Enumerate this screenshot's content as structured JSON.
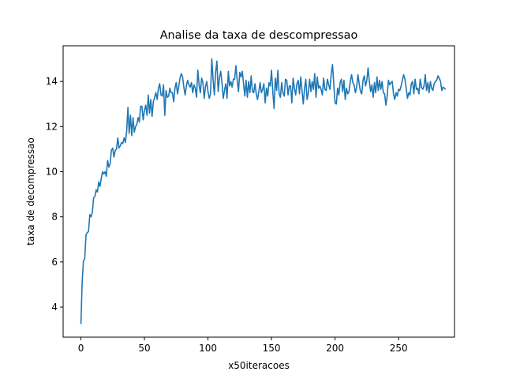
{
  "chart_data": {
    "type": "line",
    "title": "Analise da taxa de descompressao",
    "xlabel": "x50iteracoes",
    "ylabel": "taxa de decompressao",
    "xlim": [
      -14,
      294
    ],
    "ylim": [
      2.67,
      15.58
    ],
    "xticks": [
      0,
      50,
      100,
      150,
      200,
      250
    ],
    "yticks": [
      4,
      6,
      8,
      10,
      12,
      14
    ],
    "grid": false,
    "legend": "none",
    "series": [
      {
        "color": "#1f77b4",
        "values": [
          3.25,
          5.15,
          6.05,
          6.15,
          7.2,
          7.3,
          7.35,
          8.1,
          8.0,
          8.2,
          8.85,
          8.9,
          9.2,
          9.1,
          9.55,
          9.35,
          9.7,
          10.0,
          9.9,
          10.0,
          9.8,
          10.5,
          10.2,
          10.35,
          10.95,
          11.05,
          10.65,
          10.95,
          11.0,
          11.5,
          11.05,
          11.15,
          11.3,
          11.25,
          11.5,
          11.3,
          11.8,
          12.85,
          11.7,
          12.5,
          11.6,
          12.4,
          11.75,
          12.0,
          12.1,
          12.4,
          12.2,
          12.9,
          12.9,
          12.3,
          12.7,
          12.95,
          12.5,
          13.4,
          12.6,
          13.2,
          12.45,
          13.1,
          13.3,
          13.5,
          13.2,
          13.7,
          13.9,
          13.4,
          13.35,
          13.85,
          12.5,
          13.6,
          13.3,
          13.35,
          13.7,
          13.5,
          13.5,
          13.1,
          13.7,
          13.95,
          13.45,
          13.8,
          14.15,
          14.35,
          14.2,
          13.75,
          13.4,
          13.8,
          14.05,
          13.85,
          13.75,
          13.95,
          13.5,
          13.85,
          13.7,
          13.3,
          14.5,
          13.85,
          13.5,
          14.15,
          13.95,
          13.25,
          13.75,
          14.0,
          13.55,
          13.25,
          13.45,
          15.0,
          14.1,
          13.4,
          14.4,
          14.9,
          13.55,
          14.15,
          14.45,
          13.95,
          13.25,
          13.6,
          13.9,
          13.25,
          14.45,
          13.8,
          14.0,
          13.75,
          14.1,
          14.1,
          14.7,
          14.05,
          13.55,
          14.4,
          14.2,
          14.45,
          13.9,
          13.35,
          14.05,
          13.3,
          14.0,
          13.5,
          14.25,
          13.55,
          13.5,
          13.9,
          13.45,
          13.2,
          13.55,
          13.95,
          13.5,
          13.65,
          13.9,
          13.05,
          13.7,
          13.35,
          13.95,
          13.8,
          14.5,
          13.55,
          12.8,
          14.15,
          13.6,
          14.5,
          13.45,
          13.3,
          13.95,
          13.5,
          13.35,
          14.1,
          14.05,
          13.4,
          13.8,
          13.8,
          13.05,
          14.15,
          13.7,
          13.4,
          13.9,
          14.05,
          13.45,
          14.2,
          13.6,
          13.0,
          13.7,
          14.1,
          13.2,
          13.5,
          14.1,
          13.55,
          14.0,
          13.65,
          14.35,
          13.3,
          14.2,
          13.7,
          13.8,
          13.65,
          13.4,
          14.15,
          13.65,
          13.6,
          14.1,
          13.85,
          13.65,
          14.35,
          14.75,
          13.85,
          13.05,
          13.0,
          13.7,
          13.4,
          13.95,
          14.1,
          13.55,
          14.05,
          13.2,
          13.7,
          13.45,
          13.55,
          14.0,
          14.3,
          13.95,
          13.85,
          13.5,
          13.75,
          14.3,
          13.9,
          13.55,
          13.45,
          14.05,
          14.25,
          13.8,
          14.05,
          14.6,
          14.0,
          13.55,
          13.85,
          13.3,
          13.95,
          13.5,
          14.2,
          13.6,
          14.05,
          13.65,
          14.0,
          13.5,
          13.45,
          12.95,
          13.35,
          14.05,
          13.85,
          13.95,
          14.0,
          13.45,
          13.2,
          13.5,
          13.35,
          13.65,
          13.6,
          13.8,
          14.05,
          14.3,
          14.1,
          13.7,
          13.25,
          13.5,
          13.4,
          13.9,
          14.0,
          13.45,
          14.1,
          13.65,
          13.7,
          13.45,
          14.1,
          13.75,
          13.65,
          13.8,
          14.3,
          13.6,
          13.95,
          13.5,
          14.0,
          13.7,
          13.6,
          13.9,
          14.0,
          14.05,
          14.25,
          14.15,
          14.0,
          13.6,
          13.75,
          13.7,
          13.65
        ]
      }
    ]
  }
}
